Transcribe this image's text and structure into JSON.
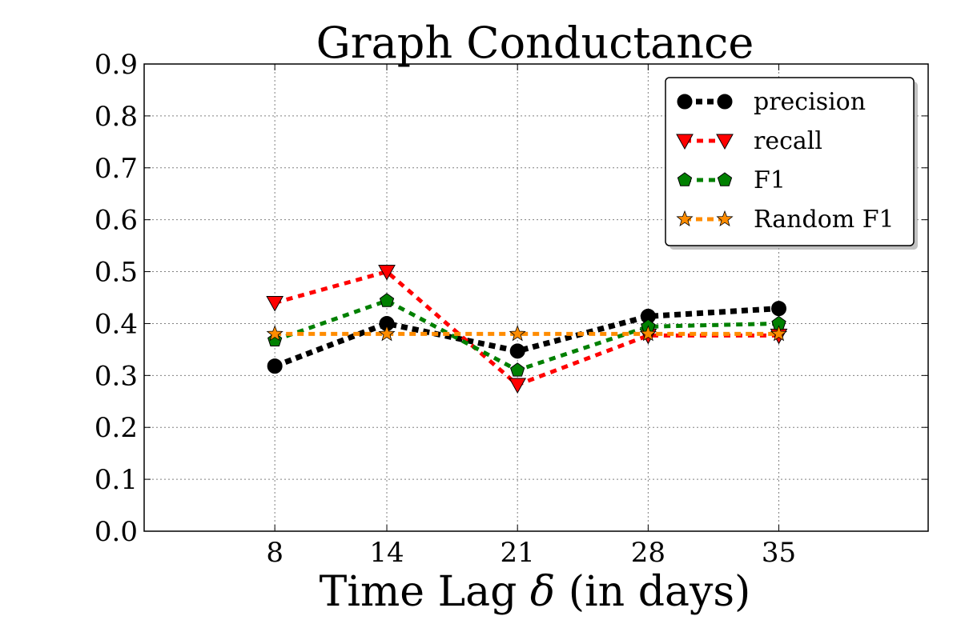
{
  "chart_data": {
    "type": "line",
    "title": "Graph Conductance",
    "xlabel_main": "Time Lag ",
    "xlabel_symbol": "δ",
    "xlabel_tail": " (in days)",
    "x": [
      8,
      14,
      21,
      28,
      35
    ],
    "x_tick_labels": [
      "8",
      "14",
      "21",
      "28",
      "35"
    ],
    "xlim": [
      1,
      43
    ],
    "ylim": [
      0.0,
      0.9
    ],
    "y_ticks": [
      0.0,
      0.1,
      0.2,
      0.3,
      0.4,
      0.5,
      0.6,
      0.7,
      0.8,
      0.9
    ],
    "y_tick_labels": [
      "0.0",
      "0.1",
      "0.2",
      "0.3",
      "0.4",
      "0.5",
      "0.6",
      "0.7",
      "0.8",
      "0.9"
    ],
    "grid": true,
    "legend_position": "top-right",
    "series": [
      {
        "name": "precision",
        "color": "#000000",
        "marker": "circle",
        "values": [
          0.318,
          0.4,
          0.347,
          0.414,
          0.429
        ]
      },
      {
        "name": "recall",
        "color": "#ff0000",
        "marker": "triangle-down",
        "values": [
          0.44,
          0.5,
          0.282,
          0.377,
          0.377
        ]
      },
      {
        "name": "F1",
        "color": "#008000",
        "marker": "pentagon",
        "values": [
          0.368,
          0.444,
          0.31,
          0.394,
          0.4
        ]
      },
      {
        "name": "Random F1",
        "color": "#ff8c00",
        "marker": "star",
        "values": [
          0.38,
          0.38,
          0.38,
          0.38,
          0.38
        ]
      }
    ]
  }
}
